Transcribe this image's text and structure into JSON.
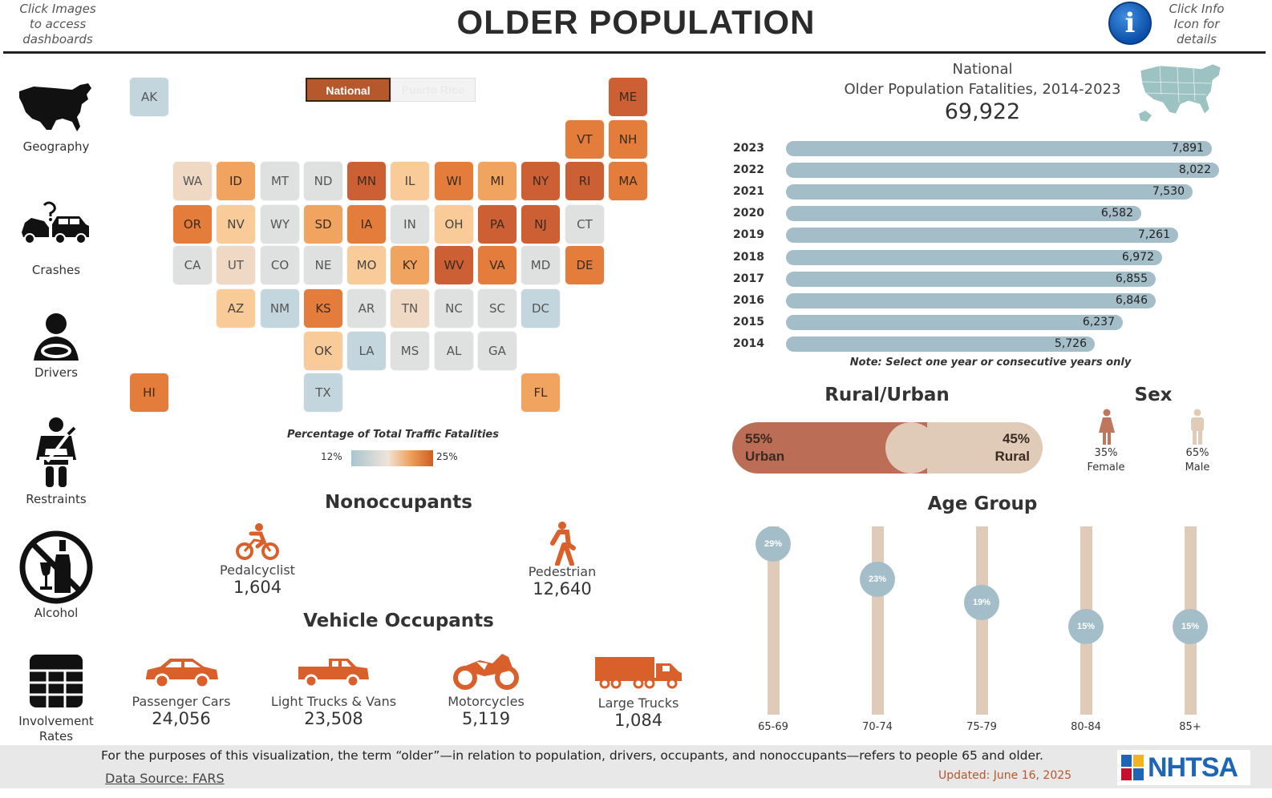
{
  "header": {
    "title": "OLDER POPULATION",
    "left_hint": [
      "Click Images",
      "to access",
      "dashboards"
    ],
    "right_hint": [
      "Click Info",
      "Icon for",
      "details"
    ],
    "info_icon": "info-icon"
  },
  "nav": [
    {
      "label": "Geography",
      "icon": "us-map-icon"
    },
    {
      "label": "Crashes",
      "icon": "car-crash-icon"
    },
    {
      "label": "Drivers",
      "icon": "driver-icon"
    },
    {
      "label": "Restraints",
      "icon": "seatbelt-icon"
    },
    {
      "label": "Alcohol",
      "icon": "no-alcohol-icon"
    },
    {
      "label": "Involvement",
      "label2": "Rates",
      "icon": "table-grid-icon"
    }
  ],
  "map": {
    "toggle": {
      "national": "National",
      "puerto_rico": "Puerto Rico"
    },
    "legend": {
      "title": "Percentage of Total Traffic Fatalities",
      "min": "12%",
      "max": "25%"
    },
    "colors": {
      "blue": "#c3d6de",
      "grey": "#dfe0e0",
      "beige": "#efd9c4",
      "peach": "#f8cb98",
      "orange": "#f1a460",
      "darkorange": "#e47d3b",
      "rust": "#cd5f34"
    },
    "states": [
      {
        "abbr": "AK",
        "color": "blue"
      },
      {
        "abbr": "ME",
        "color": "rust"
      },
      {
        "abbr": "VT",
        "color": "darkorange"
      },
      {
        "abbr": "NH",
        "color": "darkorange"
      },
      {
        "abbr": "WA",
        "color": "beige"
      },
      {
        "abbr": "ID",
        "color": "orange"
      },
      {
        "abbr": "MT",
        "color": "grey"
      },
      {
        "abbr": "ND",
        "color": "grey"
      },
      {
        "abbr": "MN",
        "color": "rust"
      },
      {
        "abbr": "IL",
        "color": "peach"
      },
      {
        "abbr": "WI",
        "color": "darkorange"
      },
      {
        "abbr": "MI",
        "color": "orange"
      },
      {
        "abbr": "NY",
        "color": "rust"
      },
      {
        "abbr": "RI",
        "color": "rust"
      },
      {
        "abbr": "MA",
        "color": "darkorange"
      },
      {
        "abbr": "OR",
        "color": "darkorange"
      },
      {
        "abbr": "NV",
        "color": "peach"
      },
      {
        "abbr": "WY",
        "color": "grey"
      },
      {
        "abbr": "SD",
        "color": "orange"
      },
      {
        "abbr": "IA",
        "color": "darkorange"
      },
      {
        "abbr": "IN",
        "color": "grey"
      },
      {
        "abbr": "OH",
        "color": "peach"
      },
      {
        "abbr": "PA",
        "color": "rust"
      },
      {
        "abbr": "NJ",
        "color": "rust"
      },
      {
        "abbr": "CT",
        "color": "grey"
      },
      {
        "abbr": "CA",
        "color": "grey"
      },
      {
        "abbr": "UT",
        "color": "beige"
      },
      {
        "abbr": "CO",
        "color": "grey"
      },
      {
        "abbr": "NE",
        "color": "grey"
      },
      {
        "abbr": "MO",
        "color": "peach"
      },
      {
        "abbr": "KY",
        "color": "orange"
      },
      {
        "abbr": "WV",
        "color": "rust"
      },
      {
        "abbr": "VA",
        "color": "darkorange"
      },
      {
        "abbr": "MD",
        "color": "grey"
      },
      {
        "abbr": "DE",
        "color": "darkorange"
      },
      {
        "abbr": "AZ",
        "color": "peach"
      },
      {
        "abbr": "NM",
        "color": "blue"
      },
      {
        "abbr": "KS",
        "color": "darkorange"
      },
      {
        "abbr": "AR",
        "color": "grey"
      },
      {
        "abbr": "TN",
        "color": "beige"
      },
      {
        "abbr": "NC",
        "color": "grey"
      },
      {
        "abbr": "SC",
        "color": "grey"
      },
      {
        "abbr": "DC",
        "color": "blue"
      },
      {
        "abbr": "OK",
        "color": "peach"
      },
      {
        "abbr": "LA",
        "color": "blue"
      },
      {
        "abbr": "MS",
        "color": "grey"
      },
      {
        "abbr": "AL",
        "color": "grey"
      },
      {
        "abbr": "GA",
        "color": "grey"
      },
      {
        "abbr": "HI",
        "color": "darkorange"
      },
      {
        "abbr": "TX",
        "color": "blue"
      },
      {
        "abbr": "FL",
        "color": "orange"
      }
    ]
  },
  "nonoccupants": {
    "heading": "Nonoccupants",
    "items": [
      {
        "label": "Pedalcyclist",
        "value": "1,604",
        "icon": "bicycle-icon"
      },
      {
        "label": "Pedestrian",
        "value": "12,640",
        "icon": "pedestrian-icon"
      }
    ]
  },
  "occupants": {
    "heading": "Vehicle Occupants",
    "items": [
      {
        "label": "Passenger Cars",
        "value": "24,056",
        "icon": "car-icon"
      },
      {
        "label": "Light Trucks & Vans",
        "value": "23,508",
        "icon": "pickup-truck-icon"
      },
      {
        "label": "Motorcycles",
        "value": "5,119",
        "icon": "motorcycle-icon"
      },
      {
        "label": "Large Trucks",
        "value": "1,084",
        "icon": "semi-truck-icon"
      }
    ]
  },
  "chart_data": [
    {
      "type": "bar",
      "title": "National",
      "subtitle": "Older Population Fatalities, 2014-2023",
      "total": "69,922",
      "categories": [
        "2023",
        "2022",
        "2021",
        "2020",
        "2019",
        "2018",
        "2017",
        "2016",
        "2015",
        "2014"
      ],
      "values": [
        7891,
        8022,
        7530,
        6582,
        7261,
        6972,
        6855,
        6846,
        6237,
        5726
      ],
      "value_labels": [
        "7,891",
        "8,022",
        "7,530",
        "6,582",
        "7,261",
        "6,972",
        "6,855",
        "6,846",
        "6,237",
        "5,726"
      ],
      "orientation": "horizontal",
      "xlim": [
        0,
        8100
      ],
      "color": "#a4bec9",
      "note": "Note: Select one year or consecutive years only"
    },
    {
      "type": "bar",
      "title": "Rural/Urban",
      "categories": [
        "Urban",
        "Rural"
      ],
      "values": [
        55,
        45
      ],
      "value_labels": [
        "55%",
        "45%"
      ],
      "colors": [
        "#bb6d55",
        "#dfcbb8"
      ]
    },
    {
      "type": "bar",
      "title": "Sex",
      "categories": [
        "Female",
        "Male"
      ],
      "values": [
        35,
        65
      ],
      "value_labels": [
        "35%",
        "65%"
      ],
      "colors": [
        "#c0765c",
        "#dfcbb8"
      ]
    },
    {
      "type": "scatter",
      "title": "Age Group",
      "categories": [
        "65-69",
        "70-74",
        "75-79",
        "80-84",
        "85+"
      ],
      "values": [
        29,
        23,
        19,
        15,
        15
      ],
      "value_labels": [
        "29%",
        "23%",
        "19%",
        "15%",
        "15%"
      ],
      "ylim": [
        0,
        32
      ],
      "color": "#a4bec9"
    }
  ],
  "footer": {
    "note": "For the purposes of this visualization, the term “older”—in relation to population, drivers, occupants, and nonoccupants—refers to people 65 and older.",
    "source": "Data Source: FARS",
    "updated": "Updated: June 16, 2025",
    "logo": "NHTSA"
  }
}
